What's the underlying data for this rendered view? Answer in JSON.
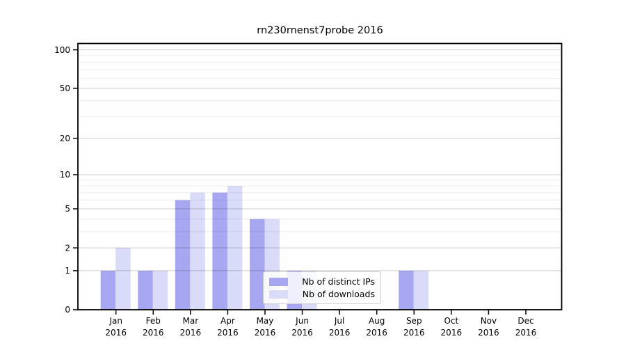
{
  "chart_data": {
    "type": "bar",
    "title": "rn230rnenst7probe 2016",
    "categories": [
      "Jan",
      "Feb",
      "Mar",
      "Apr",
      "May",
      "Jun",
      "Jul",
      "Aug",
      "Sep",
      "Oct",
      "Nov",
      "Dec"
    ],
    "year_label": "2016",
    "series": [
      {
        "name": "Nb of distinct IPs",
        "color": "#a6a6f1",
        "values": [
          1,
          1,
          6,
          7,
          4,
          1,
          0,
          0,
          1,
          0,
          0,
          0
        ]
      },
      {
        "name": "Nb of downloads",
        "color": "#d9dbf8",
        "values": [
          2,
          1,
          7,
          8,
          4,
          1,
          0,
          0,
          1,
          0,
          0,
          0
        ]
      }
    ],
    "y_scale": "log1p",
    "ylim": [
      0,
      112
    ],
    "y_ticks": [
      {
        "v": 100,
        "label": "100"
      },
      {
        "v": 50,
        "label": "50"
      },
      {
        "v": 20,
        "label": "20"
      },
      {
        "v": 10,
        "label": "10"
      },
      {
        "v": 5,
        "label": "5"
      },
      {
        "v": 2,
        "label": "2"
      },
      {
        "v": 1,
        "label": "1"
      },
      {
        "v": 0,
        "label": "0"
      }
    ],
    "y_minor_gridlines": [
      3,
      4,
      6,
      7,
      8,
      9,
      30,
      40,
      60,
      70,
      80,
      90
    ],
    "grid": true,
    "legend_position": "lower center",
    "colors": {
      "axis": "#000000",
      "major_grid": "rgba(0,0,0,0.20)",
      "minor_grid": "rgba(0,0,0,0.075)",
      "background": "#ffffff"
    }
  }
}
